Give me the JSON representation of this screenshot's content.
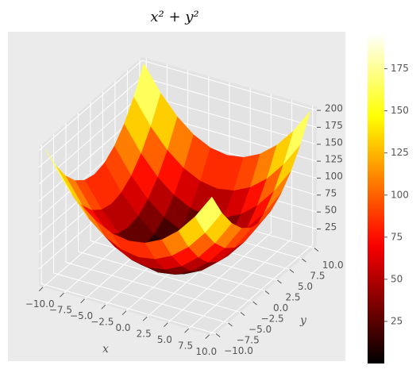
{
  "chart_data": {
    "type": "surface",
    "title": "x² + y²",
    "xlabel": "x",
    "ylabel": "y",
    "x": [
      -10,
      -8,
      -6,
      -4,
      -2,
      0,
      2,
      4,
      6,
      8,
      10
    ],
    "y": [
      -10,
      -8,
      -6,
      -4,
      -2,
      0,
      2,
      4,
      6,
      8,
      10
    ],
    "z": [
      [
        200,
        164,
        136,
        116,
        104,
        100,
        104,
        116,
        136,
        164,
        200
      ],
      [
        164,
        128,
        100,
        80,
        68,
        64,
        68,
        80,
        100,
        128,
        164
      ],
      [
        136,
        100,
        72,
        52,
        40,
        36,
        40,
        52,
        72,
        100,
        136
      ],
      [
        116,
        80,
        52,
        32,
        20,
        16,
        20,
        32,
        52,
        80,
        116
      ],
      [
        104,
        68,
        40,
        20,
        8,
        4,
        8,
        20,
        40,
        68,
        104
      ],
      [
        100,
        64,
        36,
        16,
        4,
        0,
        4,
        16,
        36,
        64,
        100
      ],
      [
        104,
        68,
        40,
        20,
        8,
        4,
        8,
        20,
        40,
        68,
        104
      ],
      [
        116,
        80,
        52,
        32,
        20,
        16,
        20,
        32,
        52,
        80,
        116
      ],
      [
        136,
        100,
        72,
        52,
        40,
        36,
        40,
        52,
        72,
        100,
        136
      ],
      [
        164,
        128,
        100,
        80,
        68,
        64,
        68,
        80,
        100,
        128,
        164
      ],
      [
        200,
        164,
        136,
        116,
        104,
        100,
        104,
        116,
        136,
        164,
        200
      ]
    ],
    "xlim": [
      -10.5,
      10.5
    ],
    "ylim": [
      -10.5,
      10.5
    ],
    "zlim": [
      0,
      205
    ],
    "xticks": [
      {
        "value": -10,
        "label": "−10.0"
      },
      {
        "value": -7.5,
        "label": "−7.5"
      },
      {
        "value": -5,
        "label": "−5.0"
      },
      {
        "value": -2.5,
        "label": "−2.5"
      },
      {
        "value": 0,
        "label": "0.0"
      },
      2.5,
      {
        "value": 5,
        "label": "5.0"
      },
      7.5,
      {
        "value": 10,
        "label": "10.0"
      }
    ],
    "yticks": [
      {
        "value": -10,
        "label": "−10.0"
      },
      {
        "value": -7.5,
        "label": "−7.5"
      },
      {
        "value": -5,
        "label": "−5.0"
      },
      {
        "value": -2.5,
        "label": "−2.5"
      },
      {
        "value": 0,
        "label": "0.0"
      },
      2.5,
      {
        "value": 5,
        "label": "5.0"
      },
      7.5,
      {
        "value": 10,
        "label": "10.0"
      }
    ],
    "zticks": [
      25,
      50,
      75,
      100,
      125,
      150,
      175,
      200
    ],
    "colormap": "hot",
    "grid": true,
    "colorbar": {
      "clim": [
        0,
        196
      ],
      "ticks": [
        25,
        50,
        75,
        100,
        125,
        150,
        175
      ]
    }
  }
}
